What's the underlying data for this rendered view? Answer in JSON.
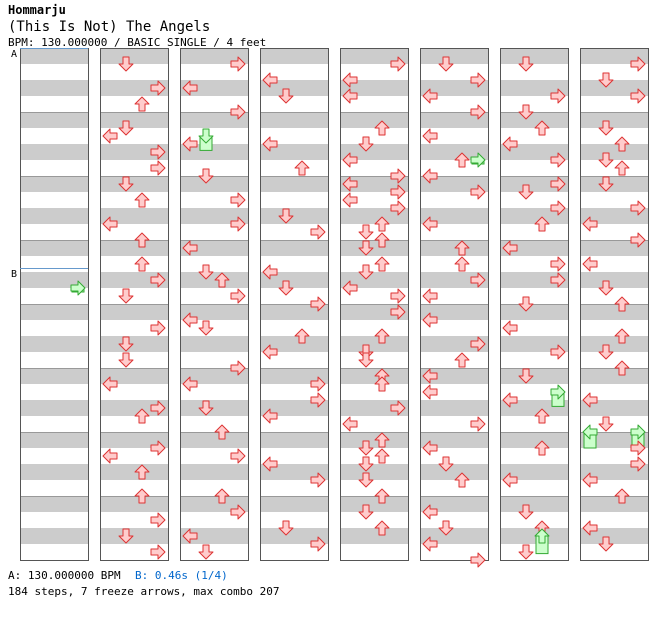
{
  "header": {
    "artist": "Hommarju",
    "title": "(This Is Not) The Angels",
    "info": "BPM: 130.000000 / BASIC SINGLE / 4 feet"
  },
  "footer": {
    "bpm_legend": "A: 130.000000 BPM",
    "stop_legend": "B: 0.46s (1/4)",
    "summary": "184 steps, 7 freeze arrows, max combo 207"
  },
  "colors": {
    "band": "#cccccc",
    "arrow_fill": "#ffcccc",
    "arrow_stroke": "#dd3333",
    "freeze_fill": "#ccffcc",
    "freeze_stroke": "#33aa33",
    "marker": "#6699cc"
  },
  "markers": [
    {
      "label": "A",
      "column": 0,
      "measure": 0
    },
    {
      "label": "B",
      "column": 0,
      "measure": 3.4375
    }
  ],
  "chart_data": {
    "type": "table",
    "measures_per_column": 8,
    "columns": 8,
    "lanes": [
      "left",
      "down",
      "up",
      "right"
    ],
    "notes": [
      [
        1,
        0.125,
        1
      ],
      [
        1,
        0.5,
        3
      ],
      [
        1,
        0.75,
        2
      ],
      [
        1,
        1.125,
        1
      ],
      [
        1,
        1.25,
        0
      ],
      [
        1,
        1.5,
        3
      ],
      [
        1,
        1.75,
        3
      ],
      [
        1,
        2,
        1
      ],
      [
        1,
        2.25,
        2
      ],
      [
        1,
        2.625,
        0
      ],
      [
        1,
        2.875,
        2
      ],
      [
        1,
        3.25,
        2
      ],
      [
        1,
        3.5,
        3
      ],
      [
        1,
        3.75,
        1
      ],
      [
        1,
        4.25,
        3
      ],
      [
        1,
        4.5,
        1
      ],
      [
        1,
        4.75,
        1
      ],
      [
        1,
        5.125,
        0
      ],
      [
        1,
        5.5,
        3
      ],
      [
        1,
        5.625,
        2
      ],
      [
        1,
        6.125,
        3
      ],
      [
        1,
        6.25,
        0
      ],
      [
        1,
        6.5,
        2
      ],
      [
        1,
        6.875,
        2
      ],
      [
        1,
        7.25,
        3
      ],
      [
        1,
        7.5,
        1
      ],
      [
        1,
        7.75,
        3
      ],
      [
        2,
        0.125,
        3
      ],
      [
        2,
        0.5,
        0
      ],
      [
        2,
        0.875,
        3
      ],
      [
        2,
        1.375,
        0
      ],
      [
        2,
        1.875,
        1
      ],
      [
        2,
        2.25,
        3
      ],
      [
        2,
        2.625,
        3
      ],
      [
        2,
        3,
        0
      ],
      [
        2,
        3.375,
        1
      ],
      [
        2,
        3.5,
        2
      ],
      [
        2,
        3.75,
        3
      ],
      [
        2,
        4.125,
        0
      ],
      [
        2,
        4.25,
        1
      ],
      [
        2,
        4.875,
        3
      ],
      [
        2,
        5.125,
        0
      ],
      [
        2,
        5.5,
        1
      ],
      [
        2,
        5.875,
        2
      ],
      [
        2,
        6.25,
        3
      ],
      [
        2,
        6.875,
        2
      ],
      [
        2,
        7.125,
        3
      ],
      [
        2,
        7.5,
        0
      ],
      [
        2,
        7.75,
        1
      ],
      [
        3,
        0.375,
        0
      ],
      [
        3,
        0.625,
        1
      ],
      [
        3,
        1.375,
        0
      ],
      [
        3,
        1.75,
        2
      ],
      [
        3,
        2.5,
        1
      ],
      [
        3,
        2.75,
        3
      ],
      [
        3,
        3.375,
        0
      ],
      [
        3,
        3.625,
        1
      ],
      [
        3,
        3.875,
        3
      ],
      [
        3,
        4.375,
        2
      ],
      [
        3,
        4.625,
        0
      ],
      [
        3,
        5.125,
        3
      ],
      [
        3,
        5.375,
        3
      ],
      [
        3,
        5.625,
        0
      ],
      [
        3,
        6.375,
        0
      ],
      [
        3,
        6.625,
        3
      ],
      [
        3,
        7.375,
        1
      ],
      [
        3,
        7.625,
        3
      ],
      [
        4,
        0.125,
        3
      ],
      [
        4,
        0.375,
        0
      ],
      [
        4,
        0.625,
        0
      ],
      [
        4,
        1.125,
        2
      ],
      [
        4,
        1.375,
        1
      ],
      [
        4,
        1.625,
        0
      ],
      [
        4,
        1.875,
        3
      ],
      [
        4,
        2,
        0
      ],
      [
        4,
        2.125,
        3
      ],
      [
        4,
        2.25,
        0
      ],
      [
        4,
        2.375,
        3
      ],
      [
        4,
        2.625,
        2
      ],
      [
        4,
        2.75,
        1
      ],
      [
        4,
        2.875,
        2
      ],
      [
        4,
        3,
        1
      ],
      [
        4,
        3.25,
        2
      ],
      [
        4,
        3.375,
        1
      ],
      [
        4,
        3.625,
        0
      ],
      [
        4,
        3.75,
        3
      ],
      [
        4,
        4,
        3
      ],
      [
        4,
        4.375,
        2
      ],
      [
        4,
        4.625,
        1
      ],
      [
        4,
        4.75,
        1
      ],
      [
        4,
        5,
        2
      ],
      [
        4,
        5.125,
        2
      ],
      [
        4,
        5.5,
        3
      ],
      [
        4,
        5.75,
        0
      ],
      [
        4,
        6,
        2
      ],
      [
        4,
        6.125,
        1
      ],
      [
        4,
        6.25,
        2
      ],
      [
        4,
        6.375,
        1
      ],
      [
        4,
        6.625,
        1
      ],
      [
        4,
        6.875,
        2
      ],
      [
        4,
        7.125,
        1
      ],
      [
        4,
        7.375,
        2
      ],
      [
        5,
        0.125,
        1
      ],
      [
        5,
        0.375,
        3
      ],
      [
        5,
        0.625,
        0
      ],
      [
        5,
        0.875,
        3
      ],
      [
        5,
        1.25,
        0
      ],
      [
        5,
        1.625,
        2
      ],
      [
        5,
        1.875,
        0
      ],
      [
        5,
        2.125,
        3
      ],
      [
        5,
        2.625,
        0
      ],
      [
        5,
        3,
        2
      ],
      [
        5,
        3.25,
        2
      ],
      [
        5,
        3.5,
        3
      ],
      [
        5,
        3.75,
        0
      ],
      [
        5,
        4.125,
        0
      ],
      [
        5,
        4.5,
        3
      ],
      [
        5,
        4.75,
        2
      ],
      [
        5,
        5,
        0
      ],
      [
        5,
        5.25,
        0
      ],
      [
        5,
        5.75,
        3
      ],
      [
        5,
        6.125,
        0
      ],
      [
        5,
        6.375,
        1
      ],
      [
        5,
        6.625,
        2
      ],
      [
        5,
        7.125,
        0
      ],
      [
        5,
        7.375,
        1
      ],
      [
        5,
        7.625,
        0
      ],
      [
        5,
        7.875,
        3
      ],
      [
        6,
        0.125,
        1
      ],
      [
        6,
        0.625,
        3
      ],
      [
        6,
        0.875,
        1
      ],
      [
        6,
        1.125,
        2
      ],
      [
        6,
        1.375,
        0
      ],
      [
        6,
        1.625,
        3
      ],
      [
        6,
        2,
        3
      ],
      [
        6,
        2.125,
        1
      ],
      [
        6,
        2.375,
        3
      ],
      [
        6,
        2.625,
        2
      ],
      [
        6,
        3,
        0
      ],
      [
        6,
        3.25,
        3
      ],
      [
        6,
        3.5,
        3
      ],
      [
        6,
        3.875,
        1
      ],
      [
        6,
        4.25,
        0
      ],
      [
        6,
        4.625,
        3
      ],
      [
        6,
        5,
        1
      ],
      [
        6,
        5.375,
        0
      ],
      [
        6,
        5.625,
        2
      ],
      [
        6,
        6.125,
        2
      ],
      [
        6,
        6.625,
        0
      ],
      [
        6,
        7.125,
        1
      ],
      [
        6,
        7.375,
        2
      ],
      [
        6,
        7.75,
        1
      ],
      [
        7,
        0.125,
        3
      ],
      [
        7,
        0.375,
        1
      ],
      [
        7,
        0.625,
        3
      ],
      [
        7,
        1.125,
        1
      ],
      [
        7,
        1.375,
        2
      ],
      [
        7,
        1.625,
        1
      ],
      [
        7,
        1.75,
        2
      ],
      [
        7,
        2,
        1
      ],
      [
        7,
        2.375,
        3
      ],
      [
        7,
        2.625,
        0
      ],
      [
        7,
        2.875,
        3
      ],
      [
        7,
        3.25,
        0
      ],
      [
        7,
        3.625,
        1
      ],
      [
        7,
        3.875,
        2
      ],
      [
        7,
        4.375,
        2
      ],
      [
        7,
        4.625,
        1
      ],
      [
        7,
        4.875,
        2
      ],
      [
        7,
        5.375,
        0
      ],
      [
        7,
        5.75,
        1
      ],
      [
        7,
        6.125,
        3
      ],
      [
        7,
        6.375,
        3
      ],
      [
        7,
        6.625,
        0
      ],
      [
        7,
        6.875,
        2
      ],
      [
        7,
        7.375,
        0
      ],
      [
        7,
        7.625,
        1
      ]
    ],
    "freezes": [
      [
        0,
        3.625,
        3,
        3.7
      ],
      [
        2,
        1.25,
        1,
        1.6
      ],
      [
        5,
        1.625,
        3,
        1.75
      ],
      [
        6,
        5.25,
        3,
        5.6
      ],
      [
        6,
        7.5,
        2,
        7.9
      ],
      [
        7,
        5.875,
        0,
        6.25
      ],
      [
        7,
        5.875,
        3,
        6.25
      ]
    ]
  }
}
